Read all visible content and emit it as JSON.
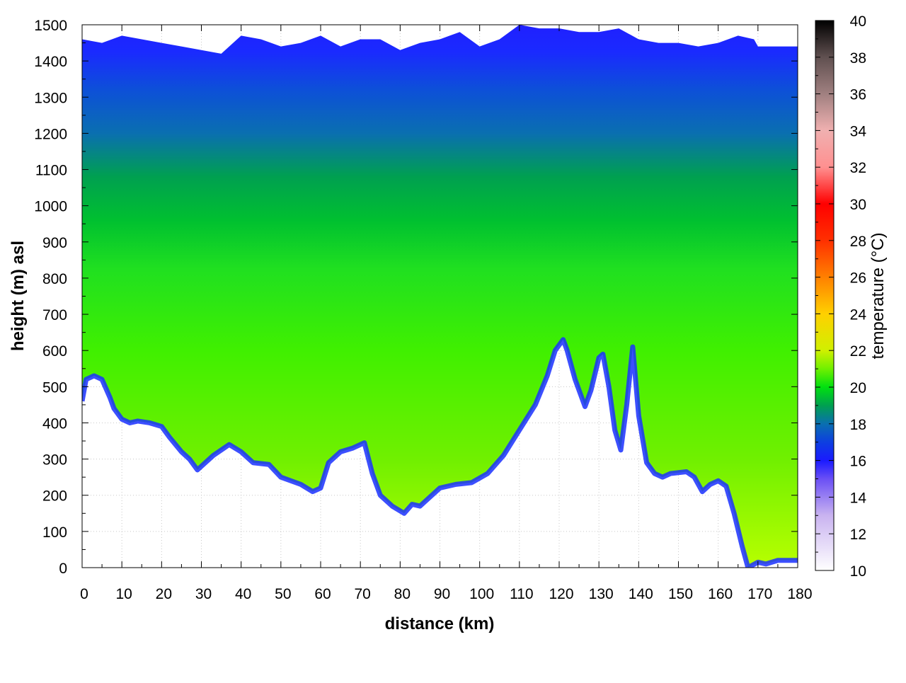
{
  "chart_data": {
    "type": "heatmap",
    "title": "",
    "xlabel": "distance (km)",
    "ylabel": "height (m) asl",
    "colorbar_label": "temperature (°C)",
    "xlim": [
      0,
      180
    ],
    "ylim": [
      0,
      1500
    ],
    "clim": [
      10,
      40
    ],
    "x_ticks": [
      0,
      10,
      20,
      30,
      40,
      50,
      60,
      70,
      80,
      90,
      100,
      110,
      120,
      130,
      140,
      150,
      160,
      170,
      180
    ],
    "y_ticks": [
      0,
      100,
      200,
      300,
      400,
      500,
      600,
      700,
      800,
      900,
      1000,
      1100,
      1200,
      1300,
      1400,
      1500
    ],
    "colorbar_ticks": [
      10,
      12,
      14,
      16,
      18,
      20,
      22,
      24,
      26,
      28,
      30,
      32,
      34,
      36,
      38,
      40
    ],
    "grid": true,
    "colormap": [
      {
        "t": 10,
        "color": "#ffffff"
      },
      {
        "t": 13,
        "color": "#c9b3f0"
      },
      {
        "t": 15,
        "color": "#6a4ff5"
      },
      {
        "t": 16,
        "color": "#1a1aff"
      },
      {
        "t": 17,
        "color": "#0d3fe0"
      },
      {
        "t": 18,
        "color": "#0a6fb0"
      },
      {
        "t": 19,
        "color": "#00a050"
      },
      {
        "t": 20,
        "color": "#00e010"
      },
      {
        "t": 21,
        "color": "#70f000"
      },
      {
        "t": 22,
        "color": "#d0f000"
      },
      {
        "t": 24,
        "color": "#ffd000"
      },
      {
        "t": 26,
        "color": "#ff8000"
      },
      {
        "t": 28,
        "color": "#ff3000"
      },
      {
        "t": 30,
        "color": "#ff0000"
      },
      {
        "t": 32,
        "color": "#ff9090"
      },
      {
        "t": 34,
        "color": "#f0b0b0"
      },
      {
        "t": 36,
        "color": "#a08080"
      },
      {
        "t": 38,
        "color": "#605050"
      },
      {
        "t": 40,
        "color": "#000000"
      }
    ],
    "terrain_profile": {
      "x": [
        0,
        1,
        3,
        5,
        7,
        8,
        10,
        12,
        14,
        17,
        20,
        22,
        25,
        27,
        29,
        30,
        33,
        37,
        40,
        43,
        47,
        50,
        55,
        58,
        60,
        62,
        65,
        68,
        71,
        73,
        75,
        78,
        81,
        83,
        85,
        87,
        90,
        94,
        98,
        102,
        106,
        110,
        114,
        117,
        119,
        121,
        122,
        124,
        126.5,
        128,
        130,
        131,
        132.5,
        134,
        135.5,
        137,
        138.5,
        140,
        142,
        144,
        146,
        148,
        152,
        154,
        156,
        158,
        160,
        162,
        164,
        166,
        167.5,
        170,
        172,
        175,
        180
      ],
      "height_m": [
        460,
        520,
        530,
        520,
        470,
        440,
        410,
        400,
        405,
        400,
        390,
        360,
        320,
        300,
        270,
        280,
        310,
        340,
        320,
        290,
        285,
        250,
        230,
        210,
        220,
        290,
        320,
        330,
        345,
        260,
        200,
        170,
        150,
        175,
        170,
        190,
        220,
        230,
        235,
        260,
        310,
        380,
        450,
        530,
        600,
        630,
        600,
        520,
        445,
        490,
        580,
        590,
        500,
        380,
        325,
        450,
        610,
        420,
        290,
        260,
        250,
        260,
        265,
        250,
        210,
        230,
        240,
        225,
        150,
        60,
        0,
        15,
        10,
        20,
        20
      ]
    },
    "top_boundary": {
      "x": [
        0,
        5,
        10,
        15,
        20,
        25,
        30,
        35,
        40,
        45,
        50,
        55,
        60,
        65,
        70,
        75,
        80,
        85,
        90,
        95,
        100,
        105,
        110,
        115,
        120,
        125,
        130,
        135,
        140,
        145,
        150,
        155,
        160,
        165,
        169,
        170,
        180
      ],
      "height_m": [
        1460,
        1450,
        1470,
        1460,
        1450,
        1440,
        1430,
        1420,
        1470,
        1460,
        1440,
        1450,
        1470,
        1440,
        1460,
        1460,
        1430,
        1450,
        1460,
        1480,
        1440,
        1460,
        1500,
        1490,
        1490,
        1480,
        1480,
        1490,
        1460,
        1450,
        1450,
        1440,
        1450,
        1470,
        1460,
        1440,
        1440
      ]
    }
  }
}
